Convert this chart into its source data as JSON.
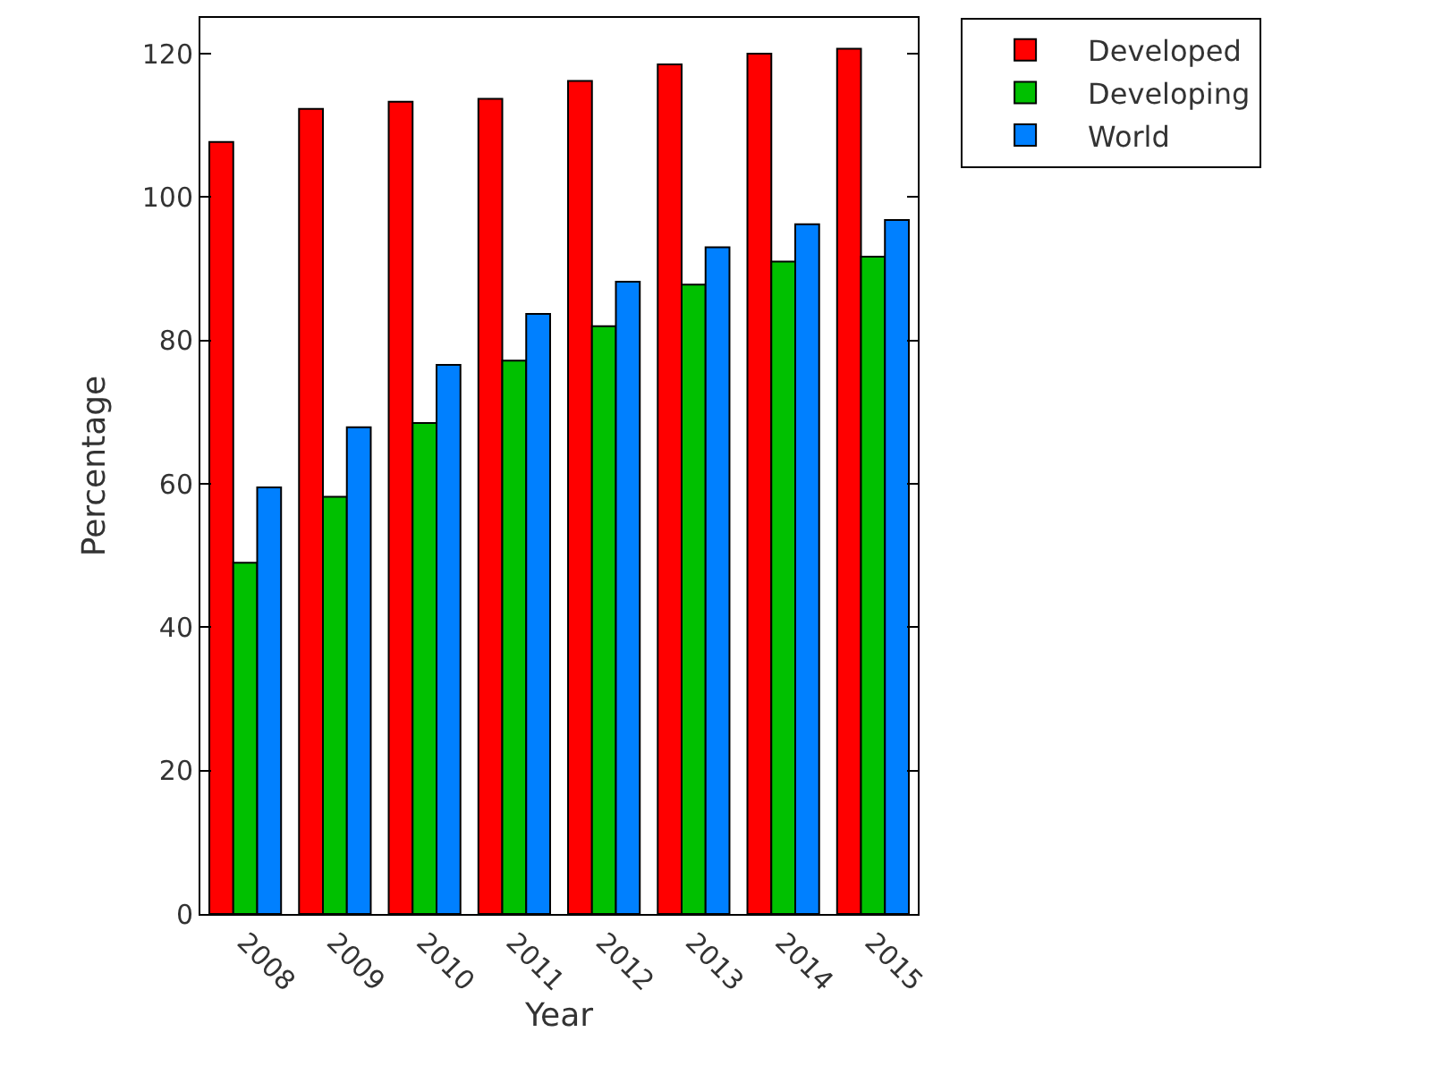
{
  "chart_data": {
    "type": "bar",
    "xlabel": "Year",
    "ylabel": "Percentage",
    "categories": [
      "2008",
      "2009",
      "2010",
      "2011",
      "2012",
      "2013",
      "2014",
      "2015"
    ],
    "series": [
      {
        "name": "Developed",
        "color": "#ff0000",
        "values": [
          107.7,
          112.3,
          113.3,
          113.7,
          116.2,
          118.5,
          120.0,
          120.7
        ]
      },
      {
        "name": "Developing",
        "color": "#00c000",
        "values": [
          49.0,
          58.2,
          68.5,
          77.2,
          82.0,
          87.8,
          91.0,
          91.7
        ]
      },
      {
        "name": "World",
        "color": "#0080ff",
        "values": [
          59.5,
          67.9,
          76.6,
          83.7,
          88.2,
          93.0,
          96.2,
          96.8
        ]
      }
    ],
    "ylim": [
      0,
      125
    ],
    "yticks": [
      0,
      20,
      40,
      60,
      80,
      100,
      120
    ],
    "legend": "top right"
  }
}
